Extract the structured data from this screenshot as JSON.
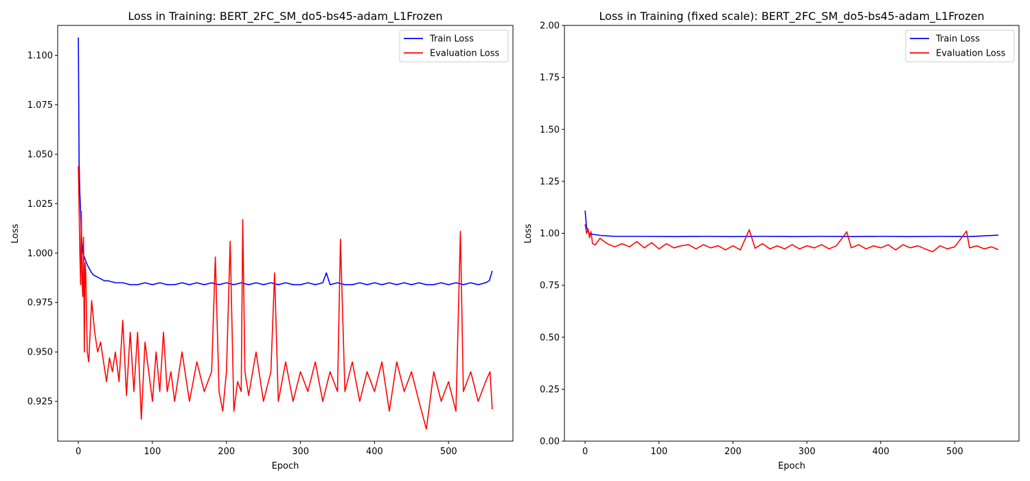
{
  "colors": {
    "train": "#0000ff",
    "eval": "#ff0000"
  },
  "chart_data": [
    {
      "type": "line",
      "title": "Loss in Training: BERT_2FC_SM_do5-bs45-adam_L1Frozen",
      "xlabel": "Epoch",
      "ylabel": "Loss",
      "xlim": [
        -27.95,
        586.95
      ],
      "ylim": [
        0.9049,
        1.1151
      ],
      "x_ticks": [
        0,
        100,
        200,
        300,
        400,
        500
      ],
      "y_ticks": [
        0.925,
        0.95,
        0.975,
        1.0,
        1.025,
        1.05,
        1.075,
        1.1
      ],
      "y_tick_labels": [
        "0.925",
        "0.950",
        "0.975",
        "1.000",
        "1.025",
        "1.050",
        "1.075",
        "1.100"
      ],
      "legend_placement": "top-right",
      "grid": false,
      "series": [
        {
          "name": "Train Loss",
          "color_key": "train",
          "x": [
            0,
            1,
            2,
            3,
            4,
            5,
            6,
            8,
            10,
            12,
            15,
            18,
            20,
            25,
            30,
            35,
            40,
            50,
            60,
            70,
            80,
            90,
            100,
            110,
            120,
            130,
            140,
            150,
            160,
            170,
            180,
            190,
            200,
            210,
            220,
            230,
            240,
            250,
            260,
            270,
            280,
            290,
            300,
            310,
            320,
            330,
            335,
            340,
            350,
            360,
            370,
            380,
            390,
            400,
            410,
            420,
            430,
            440,
            450,
            460,
            470,
            480,
            490,
            500,
            510,
            520,
            530,
            540,
            550,
            555,
            559
          ],
          "y": [
            1.109,
            1.045,
            1.03,
            1.021,
            1.01,
            1.005,
            1.0,
            0.998,
            0.996,
            0.994,
            0.992,
            0.99,
            0.989,
            0.988,
            0.987,
            0.986,
            0.986,
            0.985,
            0.985,
            0.984,
            0.984,
            0.985,
            0.984,
            0.985,
            0.984,
            0.984,
            0.985,
            0.984,
            0.985,
            0.984,
            0.985,
            0.984,
            0.985,
            0.984,
            0.985,
            0.984,
            0.985,
            0.984,
            0.985,
            0.984,
            0.985,
            0.984,
            0.984,
            0.985,
            0.984,
            0.985,
            0.99,
            0.984,
            0.985,
            0.984,
            0.984,
            0.985,
            0.984,
            0.985,
            0.984,
            0.985,
            0.984,
            0.985,
            0.984,
            0.985,
            0.984,
            0.984,
            0.985,
            0.984,
            0.985,
            0.984,
            0.985,
            0.984,
            0.985,
            0.986,
            0.991
          ]
        },
        {
          "name": "Evaluation Loss",
          "color_key": "eval",
          "x": [
            0,
            2,
            3,
            4,
            5,
            6,
            7,
            8,
            9,
            10,
            12,
            14,
            18,
            22,
            26,
            30,
            34,
            38,
            42,
            46,
            50,
            55,
            60,
            65,
            70,
            75,
            80,
            85,
            90,
            95,
            100,
            105,
            110,
            115,
            120,
            125,
            130,
            140,
            150,
            160,
            170,
            180,
            185,
            190,
            195,
            200,
            205,
            210,
            215,
            220,
            222,
            225,
            230,
            240,
            250,
            260,
            265,
            270,
            280,
            290,
            300,
            310,
            320,
            330,
            340,
            350,
            354,
            360,
            370,
            380,
            390,
            400,
            410,
            420,
            430,
            440,
            450,
            460,
            470,
            480,
            490,
            500,
            510,
            516,
            520,
            530,
            540,
            550,
            556,
            559
          ],
          "y": [
            1.044,
            1.0,
            0.984,
            1.021,
            0.985,
            0.978,
            1.008,
            0.95,
            0.995,
            0.99,
            0.95,
            0.945,
            0.976,
            0.96,
            0.95,
            0.955,
            0.945,
            0.935,
            0.947,
            0.94,
            0.95,
            0.935,
            0.966,
            0.928,
            0.96,
            0.93,
            0.96,
            0.916,
            0.955,
            0.94,
            0.925,
            0.95,
            0.93,
            0.96,
            0.93,
            0.94,
            0.925,
            0.95,
            0.925,
            0.945,
            0.93,
            0.94,
            0.998,
            0.93,
            0.92,
            0.94,
            1.006,
            0.92,
            0.935,
            0.93,
            1.017,
            0.94,
            0.928,
            0.95,
            0.925,
            0.94,
            0.99,
            0.925,
            0.945,
            0.925,
            0.94,
            0.93,
            0.945,
            0.925,
            0.94,
            0.93,
            1.007,
            0.93,
            0.945,
            0.925,
            0.94,
            0.93,
            0.945,
            0.92,
            0.945,
            0.93,
            0.94,
            0.925,
            0.911,
            0.94,
            0.925,
            0.935,
            0.92,
            1.011,
            0.93,
            0.94,
            0.925,
            0.935,
            0.94,
            0.921
          ]
        }
      ]
    },
    {
      "type": "line",
      "title": "Loss in Training (fixed scale): BERT_2FC_SM_do5-bs45-adam_L1Frozen",
      "xlabel": "Epoch",
      "ylabel": "Loss",
      "xlim": [
        -27.95,
        586.95
      ],
      "ylim": [
        0.0,
        2.0
      ],
      "x_ticks": [
        0,
        100,
        200,
        300,
        400,
        500
      ],
      "y_ticks": [
        0.0,
        0.25,
        0.5,
        0.75,
        1.0,
        1.25,
        1.5,
        1.75,
        2.0
      ],
      "y_tick_labels": [
        "0.00",
        "0.25",
        "0.50",
        "0.75",
        "1.00",
        "1.25",
        "1.50",
        "1.75",
        "2.00"
      ],
      "legend_placement": "top-right",
      "grid": false,
      "series": [
        {
          "name": "Train Loss",
          "color_key": "train",
          "x": [
            0,
            2,
            5,
            10,
            20,
            40,
            80,
            120,
            160,
            200,
            240,
            280,
            320,
            360,
            400,
            440,
            480,
            520,
            559
          ],
          "y": [
            1.109,
            1.03,
            1.0,
            0.995,
            0.99,
            0.985,
            0.985,
            0.984,
            0.985,
            0.984,
            0.985,
            0.984,
            0.985,
            0.984,
            0.985,
            0.984,
            0.985,
            0.984,
            0.991
          ]
        },
        {
          "name": "Evaluation Loss",
          "color_key": "eval",
          "x": [
            0,
            2,
            4,
            6,
            8,
            10,
            14,
            20,
            30,
            40,
            50,
            60,
            70,
            80,
            90,
            100,
            110,
            120,
            130,
            140,
            150,
            160,
            170,
            180,
            190,
            200,
            210,
            222,
            230,
            240,
            250,
            260,
            270,
            280,
            290,
            300,
            310,
            320,
            330,
            340,
            354,
            360,
            370,
            380,
            390,
            400,
            410,
            420,
            430,
            440,
            450,
            460,
            470,
            480,
            490,
            500,
            516,
            520,
            530,
            540,
            550,
            559
          ],
          "y": [
            1.044,
            1.0,
            1.021,
            0.978,
            1.008,
            0.95,
            0.945,
            0.976,
            0.95,
            0.935,
            0.95,
            0.935,
            0.96,
            0.93,
            0.955,
            0.925,
            0.95,
            0.93,
            0.94,
            0.945,
            0.925,
            0.945,
            0.93,
            0.94,
            0.92,
            0.94,
            0.92,
            1.017,
            0.928,
            0.95,
            0.925,
            0.94,
            0.925,
            0.945,
            0.925,
            0.94,
            0.93,
            0.945,
            0.925,
            0.94,
            1.007,
            0.93,
            0.945,
            0.925,
            0.94,
            0.93,
            0.945,
            0.92,
            0.945,
            0.93,
            0.94,
            0.925,
            0.911,
            0.94,
            0.925,
            0.935,
            1.011,
            0.93,
            0.94,
            0.925,
            0.935,
            0.921
          ]
        }
      ]
    }
  ]
}
